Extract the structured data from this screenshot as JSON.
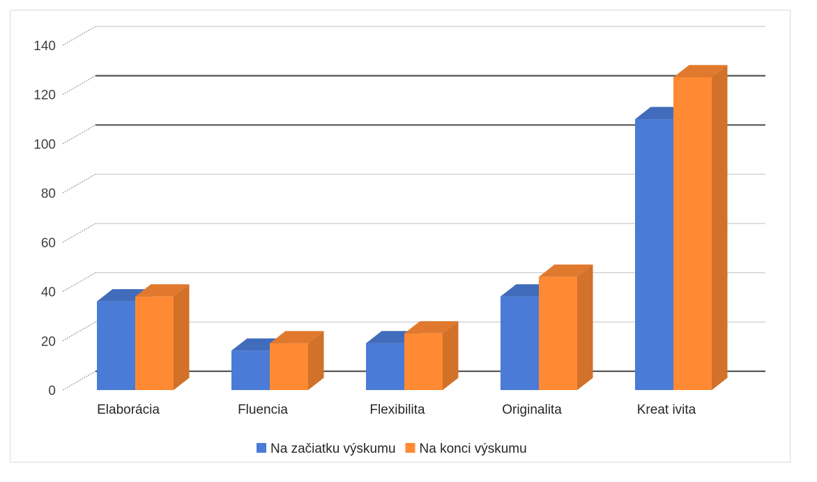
{
  "chart_data": {
    "type": "bar",
    "categories": [
      "Elaborácia",
      "Fluencia",
      "Flexibilita",
      "Originalita",
      "Kreat ivita"
    ],
    "series": [
      {
        "name": "Na začiatku výskumu",
        "values": [
          36,
          16,
          19,
          38,
          110
        ],
        "color": "#4a7bd6"
      },
      {
        "name": "Na konci výskumu",
        "values": [
          38,
          19,
          23,
          46,
          127
        ],
        "color": "#ff8a33"
      }
    ],
    "ylim": [
      0,
      140
    ],
    "yticks": [
      0,
      20,
      40,
      60,
      80,
      100,
      120,
      140
    ],
    "grid": true,
    "legend_position": "bottom"
  }
}
